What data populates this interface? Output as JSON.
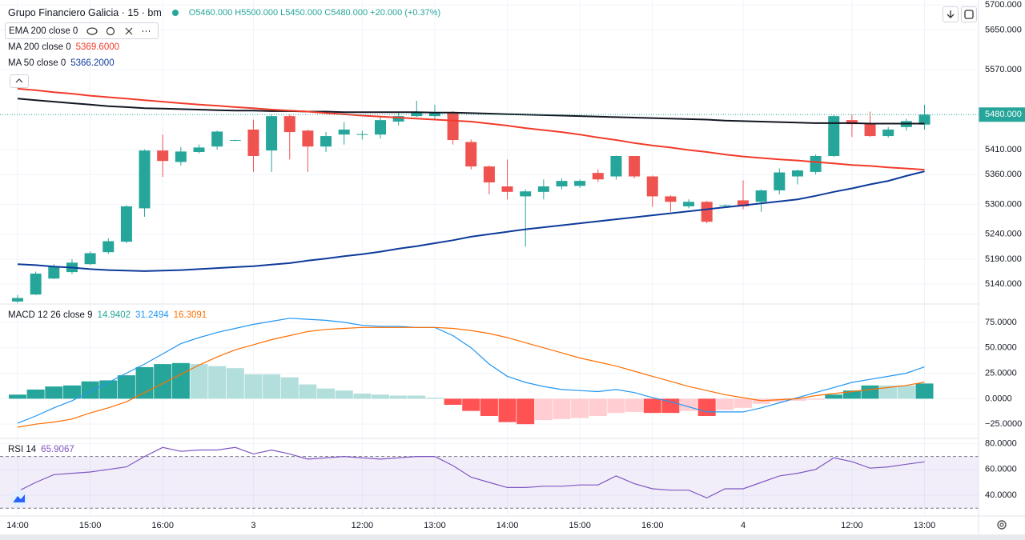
{
  "header": {
    "title": "Grupo Financiero Galicia · 15 · bm",
    "ohlc": [
      {
        "key": "O",
        "value": "5460.000"
      },
      {
        "key": "H",
        "value": "5500.000"
      },
      {
        "key": "L",
        "value": "5450.000"
      },
      {
        "key": "C",
        "value": "5480.000"
      }
    ],
    "change": "+20.000 (+0.37%)"
  },
  "chart_data": [
    {
      "type": "candlestick",
      "categories": [
        "14:00",
        null,
        null,
        null,
        "15:00",
        null,
        null,
        null,
        "16:00",
        null,
        null,
        null,
        null,
        "3",
        null,
        null,
        null,
        null,
        null,
        "12:00",
        null,
        null,
        null,
        "13:00",
        null,
        null,
        null,
        "14:00",
        null,
        null,
        null,
        "15:00",
        null,
        null,
        null,
        "16:00",
        null,
        null,
        null,
        null,
        "4",
        null,
        null,
        null,
        null,
        null,
        "12:00",
        null,
        null,
        null,
        "13:00"
      ],
      "open": [
        5105,
        5119,
        5151,
        5164,
        5180,
        5204,
        5225,
        5292,
        5408,
        5385,
        5405,
        5416,
        5428,
        5450,
        5408,
        5477,
        5448,
        5416,
        5440,
        5440,
        5440,
        5466,
        5477,
        5477,
        5485,
        5425,
        5376,
        5336,
        5316,
        5325,
        5336,
        5337,
        5363,
        5356,
        5397,
        5356,
        5316,
        5296,
        5305,
        5297,
        5308,
        5305,
        5328,
        5356,
        5365,
        5397,
        5469,
        5461,
        5437,
        5455,
        5460
      ],
      "high": [
        5118,
        5165,
        5180,
        5190,
        5205,
        5232,
        5298,
        5410,
        5440,
        5415,
        5420,
        5448,
        5430,
        5470,
        5480,
        5480,
        5450,
        5445,
        5465,
        5448,
        5475,
        5485,
        5508,
        5500,
        5487,
        5430,
        5378,
        5390,
        5330,
        5350,
        5352,
        5350,
        5370,
        5398,
        5397,
        5358,
        5318,
        5310,
        5307,
        5300,
        5348,
        5330,
        5372,
        5370,
        5400,
        5480,
        5480,
        5486,
        5455,
        5472,
        5500
      ],
      "low": [
        5102,
        5118,
        5150,
        5160,
        5178,
        5200,
        5222,
        5275,
        5355,
        5378,
        5402,
        5410,
        5427,
        5365,
        5365,
        5390,
        5365,
        5405,
        5420,
        5430,
        5432,
        5458,
        5475,
        5470,
        5420,
        5370,
        5320,
        5310,
        5215,
        5310,
        5330,
        5333,
        5345,
        5350,
        5352,
        5295,
        5285,
        5292,
        5262,
        5296,
        5290,
        5285,
        5320,
        5340,
        5360,
        5395,
        5435,
        5435,
        5434,
        5448,
        5450
      ],
      "close": [
        5112,
        5161,
        5175,
        5183,
        5202,
        5226,
        5296,
        5408,
        5387,
        5406,
        5414,
        5446,
        5429,
        5397,
        5477,
        5445,
        5416,
        5437,
        5450,
        5441,
        5469,
        5477,
        5485,
        5485,
        5429,
        5376,
        5344,
        5325,
        5326,
        5336,
        5347,
        5347,
        5350,
        5397,
        5356,
        5316,
        5305,
        5305,
        5265,
        5298,
        5296,
        5328,
        5364,
        5368,
        5397,
        5477,
        5461,
        5437,
        5450,
        5467,
        5480
      ],
      "close_label": "5480.000",
      "up_color": "#26a69a",
      "down_color": "#ef5350",
      "series": [
        {
          "name": "EMA 200 close 0",
          "color": "#131722",
          "values": [
            5512,
            5509,
            5506,
            5503,
            5500,
            5497,
            5495,
            5493,
            5492,
            5491,
            5490,
            5489,
            5488,
            5488,
            5487,
            5487,
            5486,
            5486,
            5485,
            5485,
            5485,
            5485,
            5485,
            5484,
            5484,
            5483,
            5482,
            5481,
            5480,
            5479,
            5478,
            5477,
            5476,
            5475,
            5474,
            5473,
            5472,
            5471,
            5470,
            5468,
            5467,
            5466,
            5465,
            5464,
            5463,
            5463,
            5463,
            5462,
            5462,
            5462,
            5462
          ]
        },
        {
          "name": "MA 200 close 0",
          "color": "#f23a2a",
          "value_label": "5369.6000",
          "values": [
            5532,
            5529,
            5525,
            5522,
            5518,
            5515,
            5512,
            5509,
            5506,
            5503,
            5500,
            5498,
            5495,
            5493,
            5490,
            5488,
            5486,
            5483,
            5481,
            5478,
            5476,
            5474,
            5472,
            5470,
            5468,
            5466,
            5462,
            5458,
            5453,
            5449,
            5445,
            5440,
            5434,
            5429,
            5423,
            5418,
            5414,
            5409,
            5405,
            5400,
            5396,
            5393,
            5390,
            5388,
            5385,
            5382,
            5379,
            5377,
            5374,
            5372,
            5369.6
          ]
        },
        {
          "name": "MA 50 close 0",
          "color": "#0d3a9a",
          "value_label": "5366.2000",
          "values": [
            5180,
            5178,
            5175,
            5173,
            5170,
            5168,
            5167,
            5166,
            5167,
            5168,
            5170,
            5172,
            5174,
            5176,
            5179,
            5182,
            5187,
            5191,
            5196,
            5200,
            5205,
            5211,
            5216,
            5222,
            5228,
            5235,
            5240,
            5245,
            5250,
            5254,
            5258,
            5262,
            5266,
            5270,
            5274,
            5278,
            5282,
            5286,
            5290,
            5294,
            5298,
            5302,
            5306,
            5310,
            5317,
            5325,
            5332,
            5340,
            5347,
            5357,
            5366.2
          ]
        }
      ],
      "ylim": [
        5100,
        5710
      ],
      "yticks": [
        {
          "value": 5700,
          "label": "5700.000"
        },
        {
          "value": 5650,
          "label": "5650.000"
        },
        {
          "value": 5570,
          "label": "5570.000"
        },
        {
          "value": 5410,
          "label": "5410.000"
        },
        {
          "value": 5360,
          "label": "5360.000"
        },
        {
          "value": 5300,
          "label": "5300.000"
        },
        {
          "value": 5240,
          "label": "5240.000"
        },
        {
          "value": 5190,
          "label": "5190.000"
        },
        {
          "value": 5140,
          "label": "5140.000"
        }
      ],
      "grid": true
    },
    {
      "type": "macd",
      "title": "MACD 12 26 close 9",
      "histogram": {
        "value_label": "14.9402",
        "colors": {
          "up_strong": "#26a69a",
          "up_weak": "#b2dfdb",
          "down_strong": "#ff5252",
          "down_weak": "#ffcdd2"
        },
        "values": [
          4,
          9,
          12,
          13,
          17,
          18,
          23,
          31,
          34,
          35,
          34,
          32,
          30,
          24,
          24,
          21,
          14,
          10,
          8,
          5,
          4,
          3,
          3,
          1,
          -6,
          -12,
          -17,
          -23,
          -25,
          -21,
          -20,
          -19,
          -17,
          -14,
          -13,
          -14,
          -14,
          -12,
          -17,
          -11,
          -9,
          -5,
          -3,
          -2,
          -1,
          4,
          8,
          13,
          13,
          13,
          14.9402
        ]
      },
      "macd": {
        "color": "#2196f3",
        "value_label": "31.2494",
        "values": [
          -24,
          -17,
          -9,
          -2,
          7,
          16,
          25,
          34,
          44,
          54,
          60,
          65,
          69,
          73,
          76,
          79,
          78,
          77,
          75,
          72,
          71,
          71,
          70,
          70,
          62,
          50,
          34,
          22,
          16,
          12,
          9,
          8,
          7,
          9,
          6,
          1,
          -3,
          -8,
          -13,
          -13,
          -13,
          -9,
          -4,
          1,
          6,
          11,
          16,
          19,
          22,
          25,
          31.2494
        ]
      },
      "signal": {
        "color": "#ff6d00",
        "value_label": "16.3091",
        "values": [
          -28,
          -25,
          -23,
          -20,
          -14,
          -9,
          -3,
          6,
          15,
          24,
          33,
          41,
          48,
          53,
          58,
          62,
          66,
          68,
          69,
          70,
          70,
          70,
          70,
          70,
          69,
          67,
          64,
          60,
          55,
          50,
          45,
          40,
          36,
          32,
          27,
          22,
          17,
          12,
          8,
          4,
          1,
          -2,
          -1,
          0,
          3,
          5,
          7,
          9,
          11,
          13,
          16.3091
        ]
      },
      "ylim": [
        -39,
        93
      ],
      "yticks": [
        {
          "value": 75,
          "label": "75.0000"
        },
        {
          "value": 50,
          "label": "50.0000"
        },
        {
          "value": 25,
          "label": "25.0000"
        },
        {
          "value": 0,
          "label": "0.0000"
        },
        {
          "value": -25,
          "label": "−25.0000"
        }
      ]
    },
    {
      "type": "line",
      "title": "RSI 14",
      "color": "#7e57c2",
      "value_label": "65.9067",
      "values": [
        43,
        50,
        56,
        57,
        58,
        60,
        62,
        70,
        77,
        74,
        75,
        75,
        77,
        72,
        75,
        72,
        68,
        69,
        70,
        69,
        68,
        69,
        70,
        70,
        63,
        54,
        50,
        46,
        46,
        47,
        47,
        48,
        48,
        55,
        49,
        45,
        44,
        44,
        38,
        45,
        45,
        50,
        55,
        57,
        60,
        69,
        66,
        61,
        62,
        64,
        65.9067
      ],
      "bands": [
        30,
        70
      ],
      "ylim": [
        24,
        84
      ],
      "yticks": [
        {
          "value": 80,
          "label": "80.0000"
        },
        {
          "value": 60,
          "label": "60.0000"
        },
        {
          "value": 40,
          "label": "40.0000"
        }
      ]
    }
  ]
}
